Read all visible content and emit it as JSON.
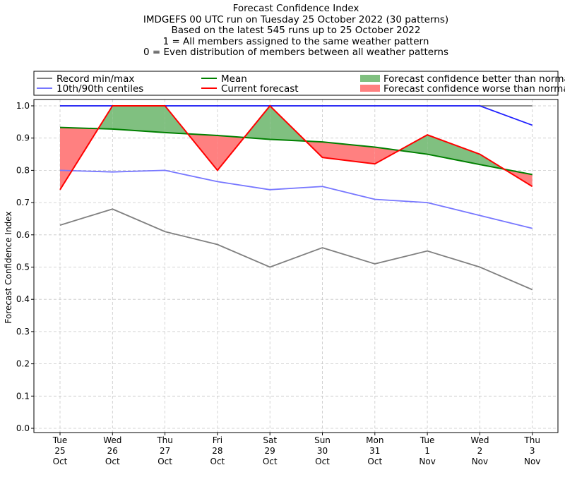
{
  "chart_data": {
    "type": "line",
    "title_lines": [
      "Forecast Confidence Index",
      "IMDGEFS 00 UTC run on Tuesday 25 October 2022 (30 patterns)",
      "Based on the latest 545 runs up to 25 October 2022",
      "1 = All members assigned to the same weather pattern",
      "0 = Even distribution of members between all weather patterns"
    ],
    "ylabel": "Forecast Confidence Index",
    "xlabel": "",
    "ylim": [
      0,
      1.0
    ],
    "yticks": [
      "0.0",
      "0.1",
      "0.2",
      "0.3",
      "0.4",
      "0.5",
      "0.6",
      "0.7",
      "0.8",
      "0.9",
      "1.0"
    ],
    "categories": [
      [
        "Tue",
        "25",
        "Oct"
      ],
      [
        "Wed",
        "26",
        "Oct"
      ],
      [
        "Thu",
        "27",
        "Oct"
      ],
      [
        "Fri",
        "28",
        "Oct"
      ],
      [
        "Sat",
        "29",
        "Oct"
      ],
      [
        "Sun",
        "30",
        "Oct"
      ],
      [
        "Mon",
        "31",
        "Oct"
      ],
      [
        "Tue",
        "1",
        "Nov"
      ],
      [
        "Wed",
        "2",
        "Nov"
      ],
      [
        "Thu",
        "3",
        "Nov"
      ]
    ],
    "grid": true,
    "legend_position": "top",
    "series": {
      "record_max": [
        1.0,
        1.0,
        1.0,
        1.0,
        1.0,
        1.0,
        1.0,
        1.0,
        1.0,
        1.0
      ],
      "record_min": [
        0.63,
        0.68,
        0.61,
        0.57,
        0.5,
        0.56,
        0.51,
        0.55,
        0.5,
        0.43
      ],
      "centile_90": [
        1.0,
        1.0,
        1.0,
        1.0,
        1.0,
        1.0,
        1.0,
        1.0,
        1.0,
        0.94
      ],
      "centile_10": [
        0.8,
        0.795,
        0.8,
        0.765,
        0.74,
        0.75,
        0.71,
        0.7,
        0.66,
        0.62
      ],
      "mean": [
        0.933,
        0.928,
        0.917,
        0.908,
        0.896,
        0.888,
        0.872,
        0.85,
        0.818,
        0.787
      ],
      "current": [
        0.74,
        1.0,
        1.0,
        0.8,
        1.0,
        0.84,
        0.82,
        0.91,
        0.85,
        0.75
      ]
    },
    "legend": [
      {
        "key": "record",
        "label": "Record min/max",
        "color": "#808080",
        "kind": "line"
      },
      {
        "key": "centiles",
        "label": "10th/90th centiles",
        "color": "#7777ff",
        "kind": "line"
      },
      {
        "key": "mean",
        "label": "Mean",
        "color": "#008000",
        "kind": "line"
      },
      {
        "key": "current",
        "label": "Current forecast",
        "color": "#ff0000",
        "kind": "line"
      },
      {
        "key": "better",
        "label": "Forecast confidence better than normal",
        "color": "#80c080",
        "kind": "patch"
      },
      {
        "key": "worse",
        "label": "Forecast confidence worse than normal",
        "color": "#ff8080",
        "kind": "patch"
      }
    ],
    "colors": {
      "record": "#808080",
      "centile_10": "#7777ff",
      "centile_90": "#2020ff",
      "mean": "#008000",
      "current": "#ff0000",
      "better_fill": "#80c080",
      "worse_fill": "#ff8080",
      "grid": "#c8c8c8"
    }
  }
}
